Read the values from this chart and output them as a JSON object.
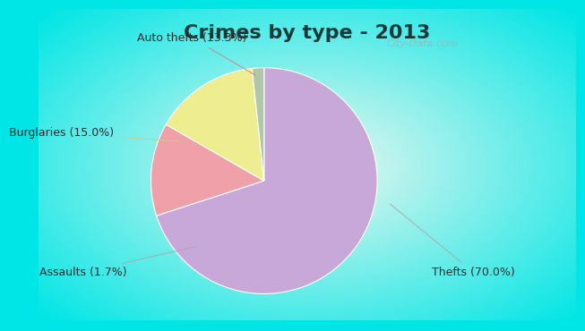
{
  "title": "Crimes by type - 2013",
  "slices": [
    {
      "label": "Thefts",
      "pct": 70.0,
      "color": "#C8A8D8"
    },
    {
      "label": "Auto thefts",
      "pct": 13.3,
      "color": "#F0A0A8"
    },
    {
      "label": "Burglaries",
      "pct": 15.0,
      "color": "#EEEE90"
    },
    {
      "label": "Assaults",
      "pct": 1.7,
      "color": "#B0C8A8"
    }
  ],
  "bg_cyan": "#00E5E5",
  "bg_inner": "#E8F5E8",
  "title_fontsize": 16,
  "label_fontsize": 9,
  "title_color": "#1a3a3a",
  "label_color": "#2a2a2a",
  "watermark": "City-Data.com"
}
